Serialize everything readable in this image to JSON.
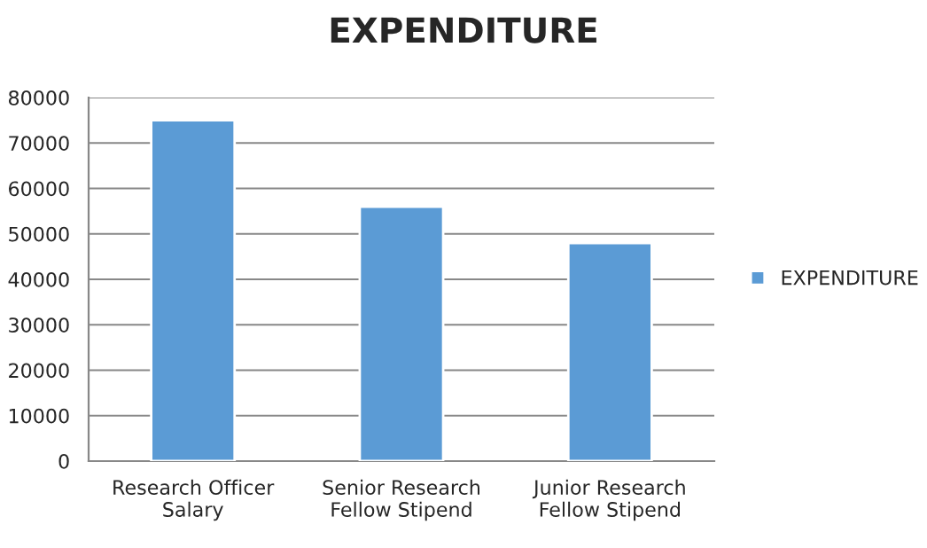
{
  "chart_data": {
    "type": "bar",
    "title": "EXPENDITURE",
    "categories": [
      "Research Officer\nSalary",
      "Senior Research\nFellow Stipend",
      "Junior Research\nFellow Stipend"
    ],
    "series": [
      {
        "name": "EXPENDITURE",
        "color": "#5b9bd5",
        "values": [
          75000,
          56000,
          48000
        ]
      }
    ],
    "ylim": [
      0,
      80000
    ],
    "yticks": [
      0,
      10000,
      20000,
      30000,
      40000,
      50000,
      60000,
      70000,
      80000
    ],
    "grid": "y",
    "legend": "right"
  }
}
